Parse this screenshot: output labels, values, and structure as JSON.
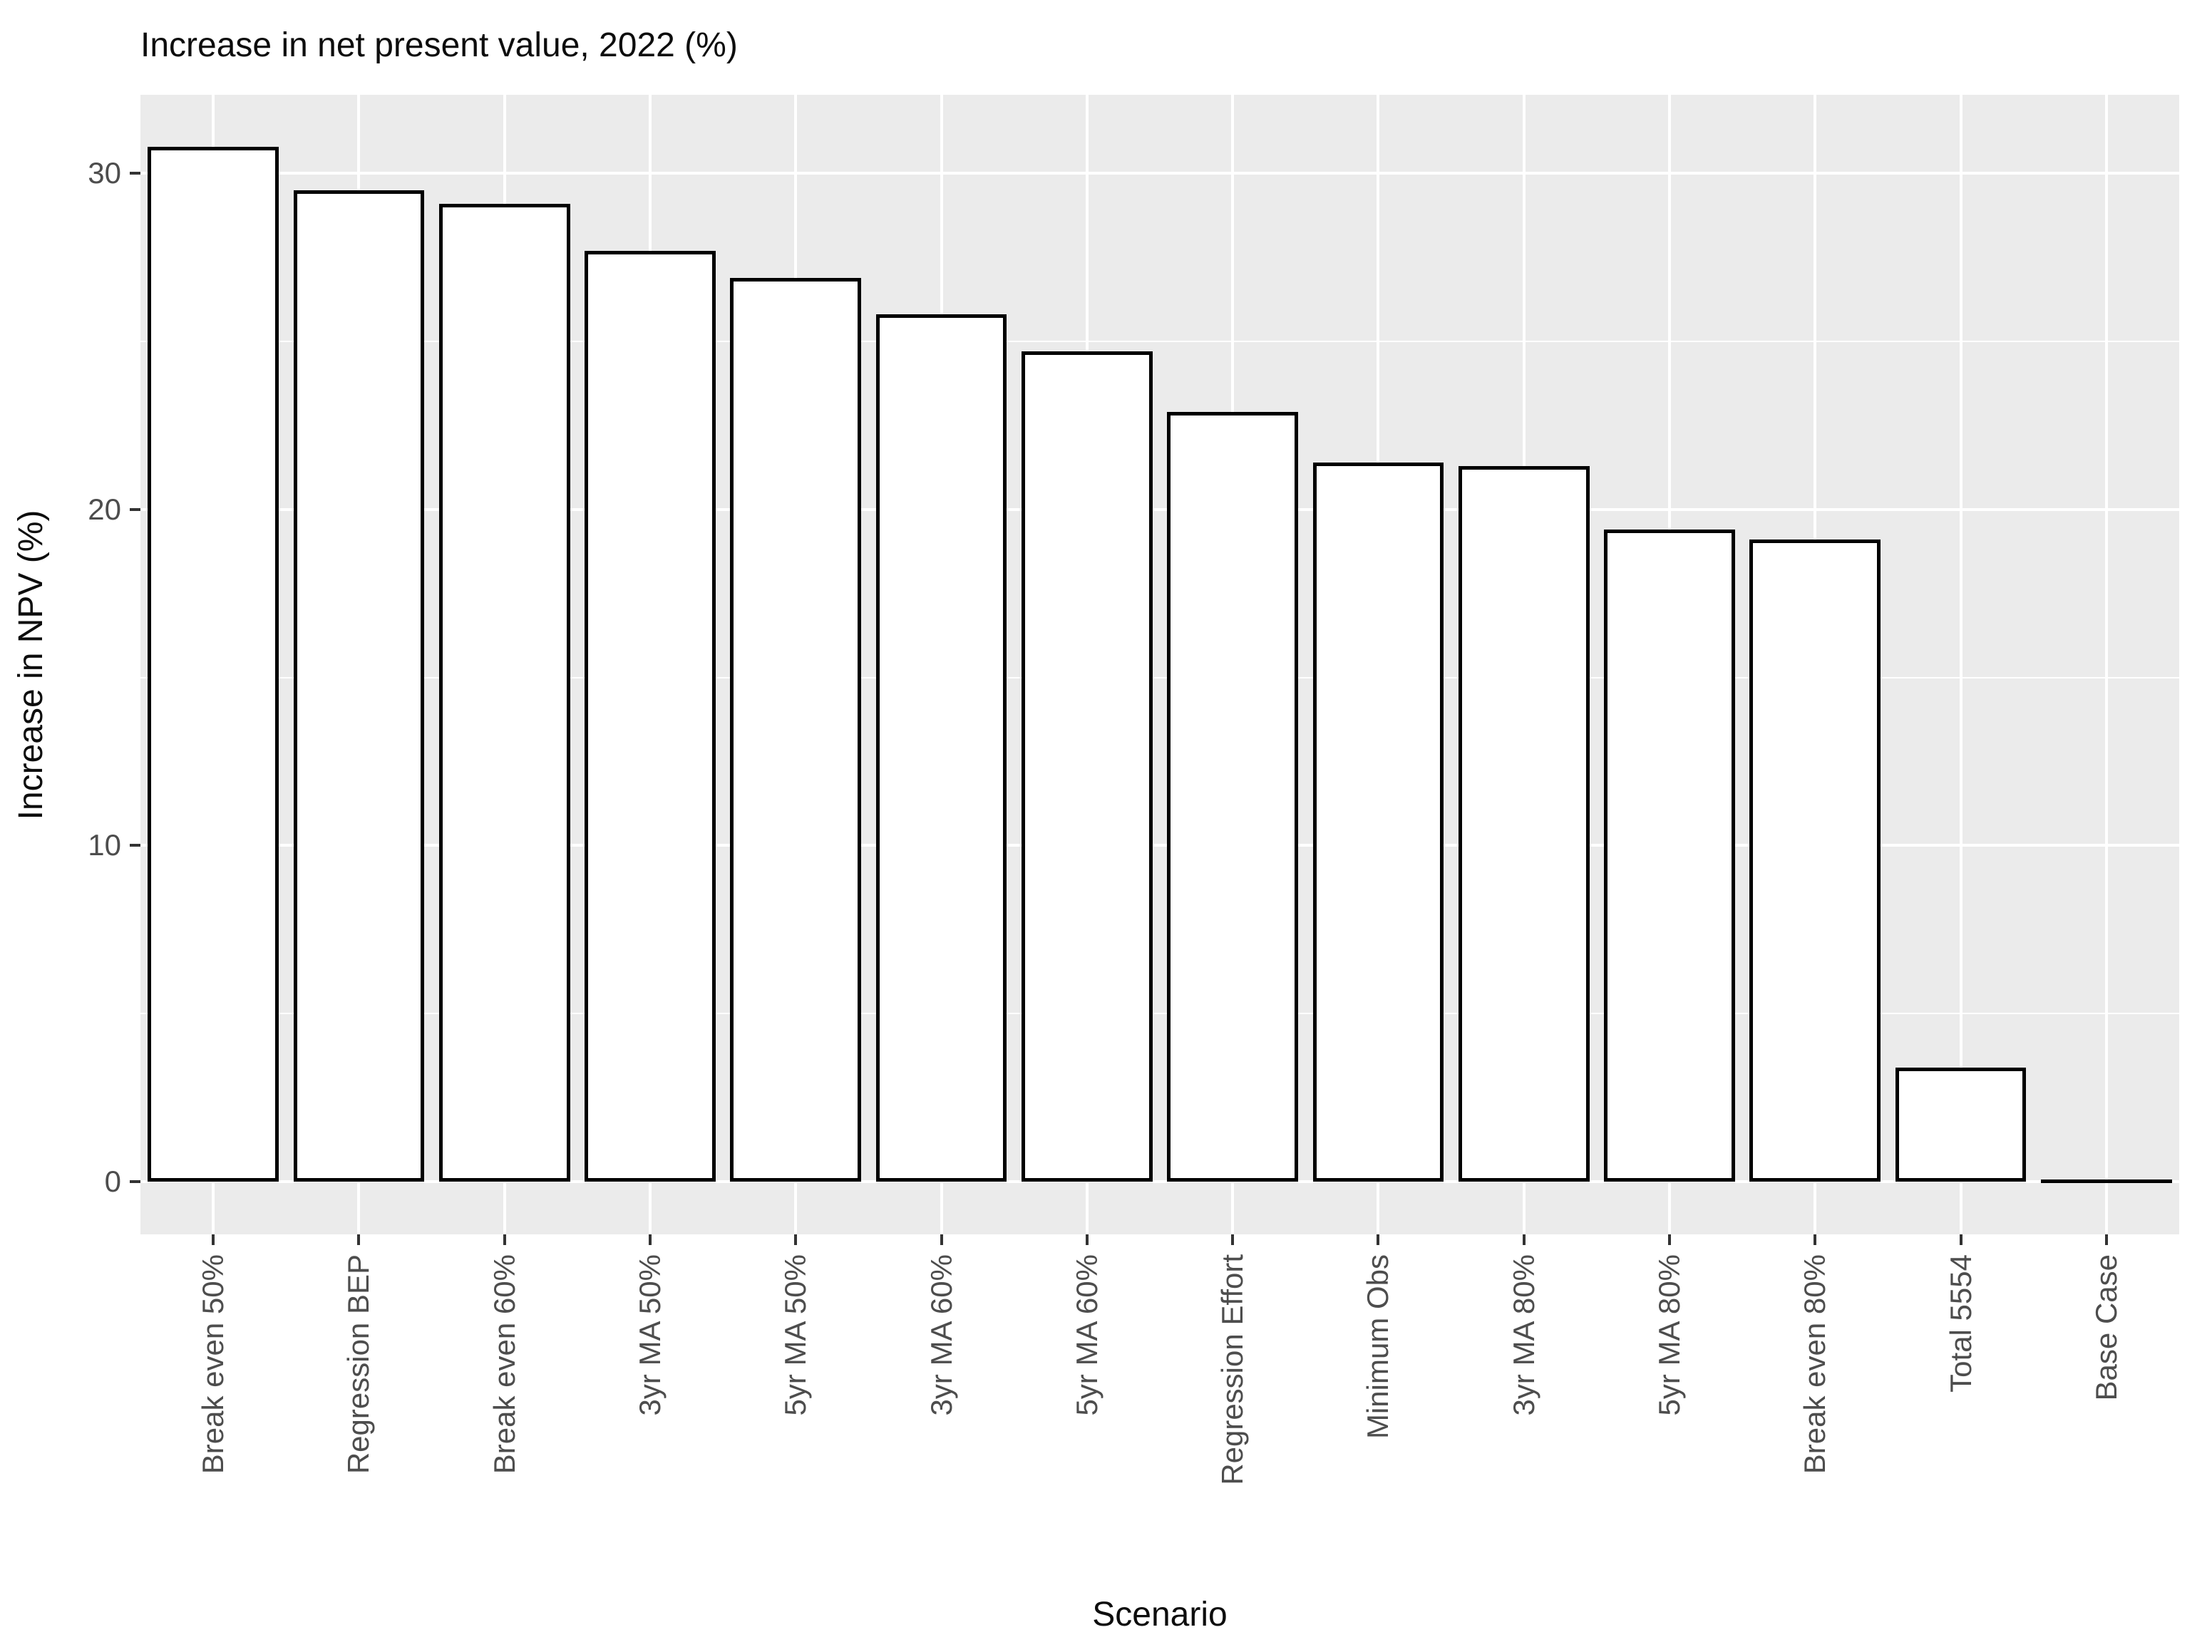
{
  "chart_data": {
    "type": "bar",
    "title": "Increase in net present value, 2022 (%)",
    "xlabel": "Scenario",
    "ylabel": "Increase in NPV (%)",
    "categories": [
      "Break even 50%",
      "Regression BEP",
      "Break even 60%",
      "3yr MA 50%",
      "5yr MA 50%",
      "3yr MA 60%",
      "5yr MA 60%",
      "Regression Effort",
      "Minimum Obs",
      "3yr MA 80%",
      "5yr MA 80%",
      "Break even 80%",
      "Total 5554",
      "Base Case"
    ],
    "values": [
      30.8,
      29.5,
      29.1,
      27.7,
      26.9,
      25.8,
      24.7,
      22.9,
      21.4,
      21.3,
      19.4,
      19.1,
      3.4,
      0
    ],
    "ylim": [
      -1.57,
      32.34
    ],
    "y_ticks": [
      {
        "value": 30,
        "label": "30"
      },
      {
        "value": 20,
        "label": "20"
      },
      {
        "value": 10,
        "label": "10"
      },
      {
        "value": 0,
        "label": "0"
      }
    ],
    "y_minor_ticks": [
      25,
      15,
      5
    ],
    "grid": true,
    "legend": "none",
    "bar_width_fraction": 0.9,
    "colors": {
      "panel_bg": "#EBEBEB",
      "grid": "#FFFFFF",
      "bar_fill": "#FFFFFF",
      "bar_stroke": "#000000",
      "axis_text": "#4D4D4D",
      "tick": "#333333",
      "title_text": "#0D0D0D"
    }
  }
}
